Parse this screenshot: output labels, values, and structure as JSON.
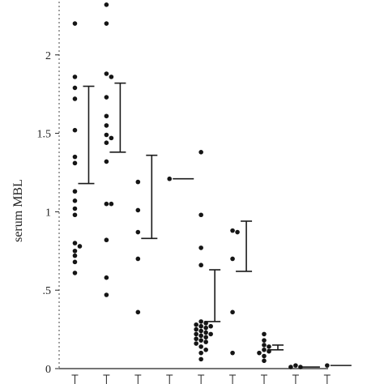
{
  "chart_data": {
    "type": "scatter",
    "title": "",
    "xlabel": "",
    "ylabel": "serum MBL",
    "ylim": [
      0,
      2.35
    ],
    "xlim": [
      0.5,
      10.7
    ],
    "yticks": [
      0,
      0.5,
      1,
      1.5,
      2
    ],
    "ytick_labels": [
      "0",
      ".5",
      "1",
      "1.5",
      "2"
    ],
    "grid": false,
    "legend": "none",
    "dot_color": "#151515",
    "groups": [
      {
        "x": 1,
        "points": [
          2.2,
          1.86,
          1.79,
          1.72,
          1.52,
          1.35,
          1.31,
          1.13,
          1.07,
          1.02,
          0.98,
          0.8,
          0.78,
          0.75,
          0.72,
          0.68,
          0.61
        ],
        "mean": 1.18,
        "upper": 1.8
      },
      {
        "x": 2,
        "points": [
          2.32,
          2.2,
          1.88,
          1.86,
          1.73,
          1.61,
          1.55,
          1.49,
          1.47,
          1.44,
          1.32,
          1.05,
          1.05,
          0.82,
          0.58,
          0.47
        ],
        "mean": 1.38,
        "upper": 1.82
      },
      {
        "x": 3,
        "points": [
          1.19,
          1.01,
          0.87,
          0.7,
          0.36
        ],
        "mean": 0.83,
        "upper": 1.36
      },
      {
        "x": 4,
        "points": [
          1.21
        ],
        "mean": 1.21,
        "upper": 1.21
      },
      {
        "x": 5,
        "points": [
          1.38,
          0.98,
          0.77,
          0.66,
          0.3,
          0.29,
          0.28,
          0.27,
          0.27,
          0.26,
          0.25,
          0.24,
          0.23,
          0.22,
          0.22,
          0.21,
          0.2,
          0.19,
          0.18,
          0.17,
          0.16,
          0.14,
          0.12,
          0.1,
          0.06
        ],
        "mean": 0.3,
        "upper": 0.63
      },
      {
        "x": 6,
        "points": [
          0.88,
          0.87,
          0.7,
          0.36,
          0.1
        ],
        "mean": 0.62,
        "upper": 0.94
      },
      {
        "x": 7,
        "points": [
          0.22,
          0.18,
          0.15,
          0.14,
          0.12,
          0.11,
          0.1,
          0.08,
          0.05
        ],
        "mean": 0.12,
        "upper": 0.15
      },
      {
        "x": 8,
        "points": [
          0.02,
          0.01,
          0.01
        ],
        "mean": 0.01,
        "upper": 0.01
      },
      {
        "x": 9,
        "points": [
          0.02
        ],
        "mean": 0.02,
        "upper": 0.02
      }
    ]
  }
}
